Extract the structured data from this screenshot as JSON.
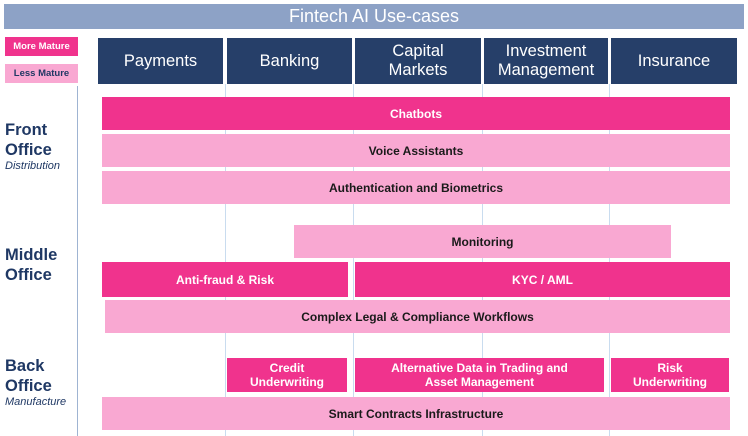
{
  "title": "Fintech AI Use-cases",
  "legend": {
    "more_mature": "More Mature",
    "less_mature": "Less Mature"
  },
  "columns": [
    "Payments",
    "Banking",
    "Capital Markets",
    "Investment Management",
    "Insurance"
  ],
  "rows": {
    "front": {
      "label": "Front Office",
      "sub": "Distribution"
    },
    "middle": {
      "label": "Middle Office",
      "sub": ""
    },
    "back": {
      "label": "Back Office",
      "sub": "Manufacture"
    }
  },
  "use_cases": {
    "chatbots": "Chatbots",
    "voice_assistants": "Voice Assistants",
    "authentication": "Authentication and Biometrics",
    "monitoring": "Monitoring",
    "anti_fraud": "Anti-fraud & Risk",
    "kyc_aml": "KYC / AML",
    "legal_compliance": "Complex Legal & Compliance Workflows",
    "credit_underwriting": "Credit Underwriting",
    "alternative_data": "Alternative Data in Trading and Asset Management",
    "risk_underwriting": "Risk Underwriting",
    "smart_contracts": "Smart Contracts Infrastructure"
  },
  "colors": {
    "more_mature": "#f0338d",
    "less_mature": "#f9a8d2",
    "header": "#263f69",
    "title_bar": "#8da2c6",
    "label_text": "#1f3864"
  }
}
